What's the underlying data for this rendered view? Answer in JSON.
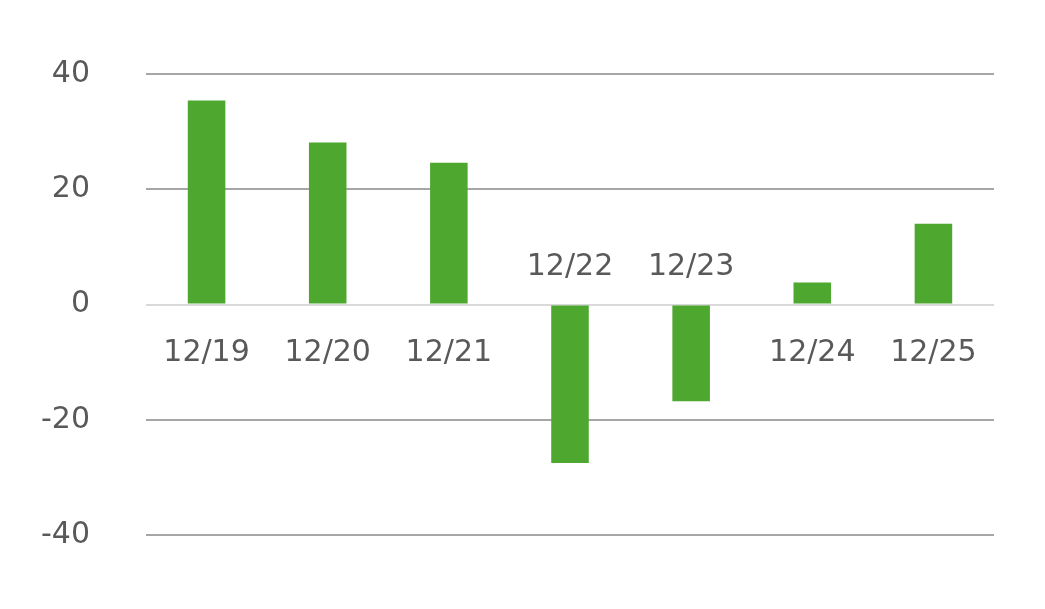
{
  "chart_data": {
    "type": "bar",
    "categories": [
      "12/19",
      "12/20",
      "12/21",
      "12/22",
      "12/23",
      "12/24",
      "12/25"
    ],
    "values": [
      35.4,
      28.1,
      24.6,
      -27.5,
      -16.8,
      3.8,
      14
    ],
    "color": "#4ea72e",
    "ylim": [
      -40,
      40
    ],
    "yticks": [
      -40,
      -20,
      0,
      20,
      40
    ],
    "grid": "y",
    "legend": false
  }
}
